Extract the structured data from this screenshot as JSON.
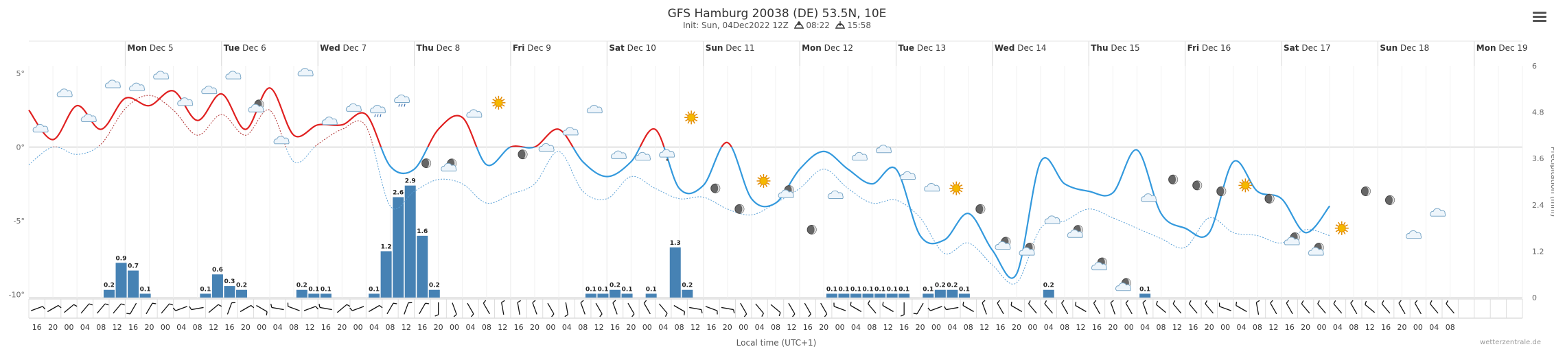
{
  "header": {
    "title": "GFS Hamburg 20038 (DE) 53.5N, 10E",
    "init_label": "Init: Sun, 04Dec2022 12Z",
    "sunrise_icon": "sunrise-icon",
    "sunrise": "08:22",
    "sunset_icon": "sunset-icon",
    "sunset": "15:58",
    "menu_icon": "hamburger-menu-icon"
  },
  "footer": {
    "xlabel": "Local time (UTC+1)",
    "credit": "wetterzentrale.de"
  },
  "chart_data": {
    "type": "line",
    "title": "GFS Hamburg 20038 (DE) 53.5N, 10E",
    "xlabel": "Local time (UTC+1)",
    "ylabel_right": "Precipitation (mm)",
    "temp_ylim": [
      -10.2,
      5.5
    ],
    "precip_ylim": [
      0,
      6
    ],
    "temp_yticks": [
      {
        "v": 5,
        "label": "5°"
      },
      {
        "v": 0,
        "label": "0°"
      },
      {
        "v": -5,
        "label": "-5°"
      },
      {
        "v": -10,
        "label": "-10°"
      }
    ],
    "precip_yticks": [
      {
        "v": 6,
        "label": "6"
      },
      {
        "v": 4.8,
        "label": "4.8"
      },
      {
        "v": 3.6,
        "label": "3.6"
      },
      {
        "v": 2.4,
        "label": "2.4"
      },
      {
        "v": 1.2,
        "label": "1.2"
      },
      {
        "v": 0,
        "label": "0"
      }
    ],
    "days": [
      {
        "h": 24,
        "dow": "Mon",
        "date": "Dec 5"
      },
      {
        "h": 48,
        "dow": "Tue",
        "date": "Dec 6"
      },
      {
        "h": 72,
        "dow": "Wed",
        "date": "Dec 7"
      },
      {
        "h": 96,
        "dow": "Thu",
        "date": "Dec 8"
      },
      {
        "h": 120,
        "dow": "Fri",
        "date": "Dec 9"
      },
      {
        "h": 144,
        "dow": "Sat",
        "date": "Dec 10"
      },
      {
        "h": 168,
        "dow": "Sun",
        "date": "Dec 11"
      },
      {
        "h": 192,
        "dow": "Mon",
        "date": "Dec 12"
      },
      {
        "h": 216,
        "dow": "Tue",
        "date": "Dec 13"
      },
      {
        "h": 240,
        "dow": "Wed",
        "date": "Dec 14"
      },
      {
        "h": 264,
        "dow": "Thu",
        "date": "Dec 15"
      },
      {
        "h": 288,
        "dow": "Fri",
        "date": "Dec 16"
      },
      {
        "h": 312,
        "dow": "Sat",
        "date": "Dec 17"
      },
      {
        "h": 336,
        "dow": "Sun",
        "date": "Dec 18"
      },
      {
        "h": 360,
        "dow": "Mon",
        "date": "Dec 19"
      }
    ],
    "hour_ticks": [
      "16",
      "20",
      "00",
      "04",
      "08",
      "12",
      "16",
      "20",
      "00",
      "04",
      "08",
      "12",
      "16",
      "20",
      "00",
      "04",
      "08",
      "12",
      "16",
      "20",
      "00",
      "04",
      "08",
      "12",
      "16",
      "20",
      "00",
      "04",
      "08",
      "12",
      "16",
      "20",
      "00",
      "04",
      "08",
      "12",
      "16",
      "20",
      "00",
      "04",
      "08",
      "12",
      "16",
      "20",
      "00",
      "04",
      "08",
      "12",
      "16",
      "20",
      "00",
      "04",
      "08",
      "12",
      "16",
      "20",
      "00",
      "04",
      "08",
      "12",
      "16",
      "20",
      "00",
      "04",
      "08",
      "12",
      "16",
      "20",
      "00",
      "04",
      "08",
      "12",
      "16",
      "20",
      "00",
      "04",
      "08",
      "12",
      "16",
      "20",
      "00",
      "04",
      "08",
      "12",
      "16",
      "20",
      "00",
      "04",
      "08"
    ],
    "temp_x": [
      0,
      6,
      12,
      18,
      24,
      30,
      36,
      42,
      48,
      54,
      60,
      66,
      72,
      78,
      84,
      90,
      96,
      102,
      108,
      114,
      120,
      126,
      132,
      138,
      144,
      150,
      156,
      162,
      168,
      174,
      180,
      186,
      192,
      198,
      204,
      210,
      216,
      222,
      228,
      234,
      240,
      246,
      252,
      258,
      264,
      270,
      276,
      282,
      288,
      294,
      300,
      306,
      312,
      318,
      324,
      330,
      336,
      342,
      348,
      354,
      360,
      366,
      372
    ],
    "temp_max": [
      2.5,
      0.5,
      2.8,
      1.2,
      3.3,
      2.8,
      3.8,
      1.8,
      3.6,
      1.2,
      4.0,
      0.8,
      1.5,
      1.5,
      2.2,
      -1.3,
      -1.5,
      1.2,
      2.0,
      -1.2,
      0,
      0,
      1.2,
      -1,
      -2,
      -1,
      1.2,
      -2.8,
      -2.6,
      0.3,
      -3.5,
      -3.8,
      -1.5,
      -0.3,
      -1.5,
      -2.5,
      -1.5,
      -6,
      -6.3,
      -4.5,
      -7,
      -8.6,
      -1,
      -2.5,
      -3,
      -3.1,
      -0.2,
      -4.5,
      -5.5,
      -5.8,
      -1,
      -3,
      -3.5,
      -5.8,
      -4
    ],
    "temp_min": [
      -1.2,
      0,
      -0.5,
      0.2,
      2.6,
      3.5,
      2.5,
      0.8,
      2.2,
      0.8,
      2.5,
      -1.0,
      0.2,
      1.2,
      1.4,
      -4.0,
      -3.0,
      -2.2,
      -2.5,
      -3.8,
      -3.2,
      -2.5,
      -0.3,
      -3.0,
      -3.5,
      -2.0,
      -2.8,
      -3.5,
      -3.4,
      -4.2,
      -4.6,
      -3.8,
      -2.8,
      -1.5,
      -2.8,
      -3.8,
      -3.6,
      -4.8,
      -7.2,
      -6.5,
      -8.0,
      -9.2,
      -5.5,
      -5.0,
      -4.2,
      -4.8,
      -5.5,
      -6.2,
      -6.8,
      -4.8,
      -5.8,
      -6.0,
      -6.5,
      -5.6,
      -6.0
    ],
    "temp_max_x": [
      0,
      6,
      12,
      18,
      24,
      30,
      36,
      42,
      48,
      54,
      60,
      66,
      72,
      78,
      84,
      90,
      96,
      102,
      108,
      114,
      120,
      126,
      132,
      138,
      144,
      150,
      156,
      162,
      168,
      174,
      180,
      186,
      192,
      198,
      204,
      210,
      216,
      222,
      228,
      234,
      240,
      246,
      252,
      258,
      264,
      270,
      276,
      282,
      288,
      294,
      300,
      306,
      312,
      318,
      324
    ],
    "precip": [
      {
        "h": 20,
        "v": 0.2,
        "label": "0.2"
      },
      {
        "h": 23,
        "v": 0.9,
        "label": "0.9"
      },
      {
        "h": 26,
        "v": 0.7,
        "label": "0.7"
      },
      {
        "h": 29,
        "v": 0.1,
        "label": "0.1"
      },
      {
        "h": 44,
        "v": 0.1,
        "label": "0.1"
      },
      {
        "h": 47,
        "v": 0.6,
        "label": "0.6"
      },
      {
        "h": 50,
        "v": 0.3,
        "label": "0.3"
      },
      {
        "h": 53,
        "v": 0.2,
        "label": "0.2"
      },
      {
        "h": 68,
        "v": 0.2,
        "label": "0.2"
      },
      {
        "h": 71,
        "v": 0.1,
        "label": "0.1"
      },
      {
        "h": 74,
        "v": 0.1,
        "label": "0.1"
      },
      {
        "h": 86,
        "v": 0.1,
        "label": "0.1"
      },
      {
        "h": 89,
        "v": 1.2,
        "label": "1.2"
      },
      {
        "h": 92,
        "v": 2.6,
        "label": "2.6"
      },
      {
        "h": 95,
        "v": 2.9,
        "label": "2.9"
      },
      {
        "h": 98,
        "v": 1.6,
        "label": "1.6"
      },
      {
        "h": 101,
        "v": 0.2,
        "label": "0.2"
      },
      {
        "h": 140,
        "v": 0.1,
        "label": "0.1"
      },
      {
        "h": 143,
        "v": 0.1,
        "label": "0.1"
      },
      {
        "h": 146,
        "v": 0.2,
        "label": "0.2"
      },
      {
        "h": 149,
        "v": 0.1,
        "label": "0.1"
      },
      {
        "h": 155,
        "v": 0.1,
        "label": "0.1"
      },
      {
        "h": 161,
        "v": 1.3,
        "label": "1.3"
      },
      {
        "h": 164,
        "v": 0.2,
        "label": "0.2"
      },
      {
        "h": 200,
        "v": 0.1,
        "label": "0.1"
      },
      {
        "h": 203,
        "v": 0.1,
        "label": "0.1"
      },
      {
        "h": 206,
        "v": 0.1,
        "label": "0.1"
      },
      {
        "h": 209,
        "v": 0.1,
        "label": "0.1"
      },
      {
        "h": 212,
        "v": 0.1,
        "label": "0.1"
      },
      {
        "h": 215,
        "v": 0.1,
        "label": "0.1"
      },
      {
        "h": 218,
        "v": 0.1,
        "label": "0.1"
      },
      {
        "h": 224,
        "v": 0.1,
        "label": "0.1"
      },
      {
        "h": 227,
        "v": 0.2,
        "label": "0.2"
      },
      {
        "h": 230,
        "v": 0.2,
        "label": "0.2"
      },
      {
        "h": 233,
        "v": 0.1,
        "label": "0.1"
      },
      {
        "h": 254,
        "v": 0.2,
        "label": "0.2"
      },
      {
        "h": 278,
        "v": 0.1,
        "label": "0.1"
      }
    ],
    "weather_icons": [
      {
        "h": 3,
        "t": 1.2,
        "k": "cloud-icon"
      },
      {
        "h": 9,
        "t": 3.6,
        "k": "cloud-icon"
      },
      {
        "h": 15,
        "t": 1.9,
        "k": "cloud-icon"
      },
      {
        "h": 21,
        "t": 4.2,
        "k": "cloud-icon"
      },
      {
        "h": 27,
        "t": 4.0,
        "k": "cloud-icon"
      },
      {
        "h": 33,
        "t": 4.8,
        "k": "cloud-icon"
      },
      {
        "h": 39,
        "t": 3.0,
        "k": "cloud-icon"
      },
      {
        "h": 45,
        "t": 3.8,
        "k": "cloud-icon"
      },
      {
        "h": 51,
        "t": 4.8,
        "k": "cloud-icon"
      },
      {
        "h": 57,
        "t": 2.7,
        "k": "moon-cloud-icon"
      },
      {
        "h": 63,
        "t": 0.4,
        "k": "cloud-icon"
      },
      {
        "h": 69,
        "t": 5.0,
        "k": "cloud-icon"
      },
      {
        "h": 75,
        "t": 1.7,
        "k": "cloud-icon"
      },
      {
        "h": 81,
        "t": 2.6,
        "k": "cloud-icon"
      },
      {
        "h": 87,
        "t": 2.5,
        "k": "rain-cloud-icon"
      },
      {
        "h": 93,
        "t": 3.2,
        "k": "rain-cloud-icon"
      },
      {
        "h": 99,
        "t": -1.1,
        "k": "moon-icon"
      },
      {
        "h": 105,
        "t": -1.3,
        "k": "moon-cloud-icon"
      },
      {
        "h": 111,
        "t": 2.2,
        "k": "cloud-icon"
      },
      {
        "h": 117,
        "t": 3.0,
        "k": "sun-icon"
      },
      {
        "h": 123,
        "t": -0.5,
        "k": "moon-icon"
      },
      {
        "h": 129,
        "t": -0.1,
        "k": "cloud-icon"
      },
      {
        "h": 135,
        "t": 1.0,
        "k": "cloud-icon"
      },
      {
        "h": 141,
        "t": 2.5,
        "k": "cloud-icon"
      },
      {
        "h": 147,
        "t": -0.6,
        "k": "cloud-icon"
      },
      {
        "h": 153,
        "t": -0.7,
        "k": "cloud-icon"
      },
      {
        "h": 159,
        "t": -0.5,
        "k": "snow-cloud-icon"
      },
      {
        "h": 165,
        "t": 2.0,
        "k": "sun-icon"
      },
      {
        "h": 171,
        "t": -2.8,
        "k": "moon-icon"
      },
      {
        "h": 177,
        "t": -4.2,
        "k": "moon-icon"
      },
      {
        "h": 183,
        "t": -2.3,
        "k": "sun-icon"
      },
      {
        "h": 189,
        "t": -3.1,
        "k": "moon-cloud-icon"
      },
      {
        "h": 195,
        "t": -5.6,
        "k": "moon-icon"
      },
      {
        "h": 201,
        "t": -3.3,
        "k": "cloud-icon"
      },
      {
        "h": 207,
        "t": -0.7,
        "k": "cloud-icon"
      },
      {
        "h": 213,
        "t": -0.2,
        "k": "cloud-icon"
      },
      {
        "h": 219,
        "t": -2.0,
        "k": "cloud-icon"
      },
      {
        "h": 225,
        "t": -2.8,
        "k": "cloud-icon"
      },
      {
        "h": 231,
        "t": -2.8,
        "k": "sun-icon"
      },
      {
        "h": 237,
        "t": -4.2,
        "k": "moon-icon"
      },
      {
        "h": 243,
        "t": -6.6,
        "k": "moon-cloud-icon"
      },
      {
        "h": 249,
        "t": -7.0,
        "k": "moon-cloud-icon"
      },
      {
        "h": 255,
        "t": -5.0,
        "k": "cloud-icon"
      },
      {
        "h": 261,
        "t": -5.8,
        "k": "moon-cloud-icon"
      },
      {
        "h": 267,
        "t": -8.0,
        "k": "moon-cloud-icon"
      },
      {
        "h": 273,
        "t": -9.4,
        "k": "moon-cloud-icon"
      },
      {
        "h": 279,
        "t": -3.5,
        "k": "cloud-icon"
      },
      {
        "h": 285,
        "t": -2.2,
        "k": "moon-icon"
      },
      {
        "h": 291,
        "t": -2.6,
        "k": "moon-icon"
      },
      {
        "h": 297,
        "t": -3.0,
        "k": "moon-icon"
      },
      {
        "h": 303,
        "t": -2.6,
        "k": "sun-icon"
      },
      {
        "h": 309,
        "t": -3.5,
        "k": "moon-icon"
      },
      {
        "h": 315,
        "t": -6.3,
        "k": "moon-cloud-icon"
      },
      {
        "h": 321,
        "t": -7.0,
        "k": "moon-cloud-icon"
      },
      {
        "h": 327,
        "t": -5.5,
        "k": "sun-icon"
      },
      {
        "h": 333,
        "t": -3.0,
        "k": "moon-icon"
      },
      {
        "h": 339,
        "t": -3.6,
        "k": "moon-icon"
      },
      {
        "h": 345,
        "t": -6.0,
        "k": "cloud-icon"
      },
      {
        "h": 351,
        "t": -4.5,
        "k": "cloud-icon"
      }
    ],
    "wind_dirs": [
      70,
      60,
      50,
      40,
      40,
      40,
      210,
      30,
      40,
      250,
      260,
      50,
      20,
      60,
      120,
      280,
      290,
      70,
      280,
      50,
      250,
      60,
      30,
      20,
      30,
      180,
      160,
      150,
      330,
      350,
      350,
      340,
      150,
      170,
      340,
      150,
      340,
      150,
      330,
      140,
      120,
      100,
      110,
      100,
      150,
      140,
      130,
      150,
      150,
      150,
      290,
      300,
      320,
      300,
      180,
      210,
      250,
      260,
      300,
      340,
      330,
      300,
      320,
      320,
      330,
      300,
      330,
      340,
      330,
      340,
      310,
      320,
      320,
      320,
      290,
      300,
      350,
      330,
      330,
      320,
      320,
      320,
      330,
      310,
      320,
      330,
      330,
      320,
      320
    ]
  }
}
